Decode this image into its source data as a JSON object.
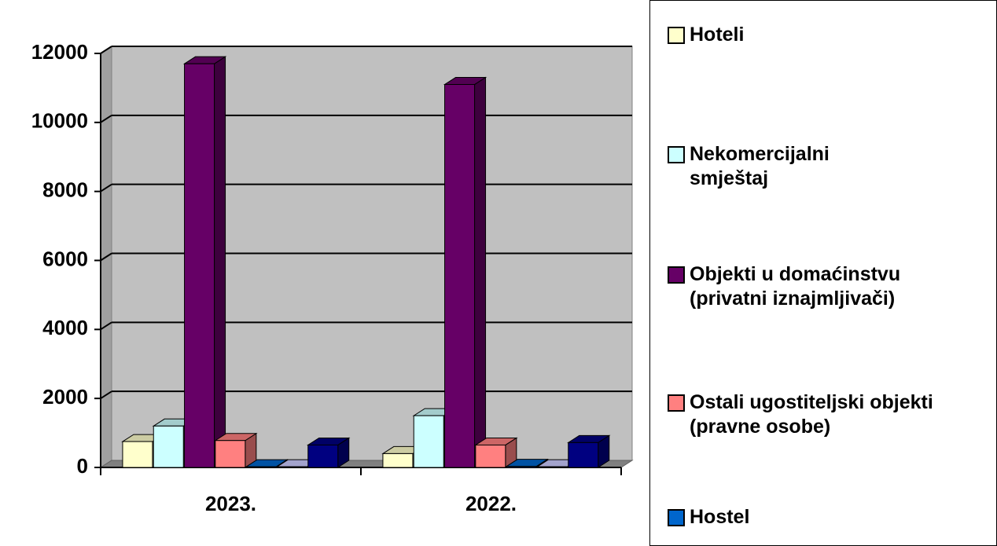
{
  "chart_data": {
    "type": "bar3d",
    "categories": [
      "2023.",
      "2022."
    ],
    "series": [
      {
        "name": "Hoteli",
        "color": "#ffffcc",
        "values": [
          750,
          400
        ]
      },
      {
        "name": "Nekomercijalni smještaj",
        "color": "#ccffff",
        "values": [
          1200,
          1500
        ]
      },
      {
        "name": "Objekti u domaćinstvu (privatni iznajmljivači)",
        "color": "#660066",
        "values": [
          11700,
          11100
        ]
      },
      {
        "name": "Ostali ugostiteljski objekti (pravne osobe)",
        "color": "#ff8080",
        "values": [
          780,
          650
        ]
      },
      {
        "name": "Hostel",
        "color": "#0066cc",
        "values": [
          20,
          30
        ]
      },
      {
        "name": null,
        "color": "#ccccff",
        "values": [
          20,
          20
        ]
      },
      {
        "name": null,
        "color": "#000080",
        "values": [
          650,
          720
        ]
      }
    ],
    "ylim": [
      0,
      12000
    ],
    "yticks": [
      0,
      2000,
      4000,
      6000,
      8000,
      10000,
      12000
    ],
    "grid": true
  }
}
